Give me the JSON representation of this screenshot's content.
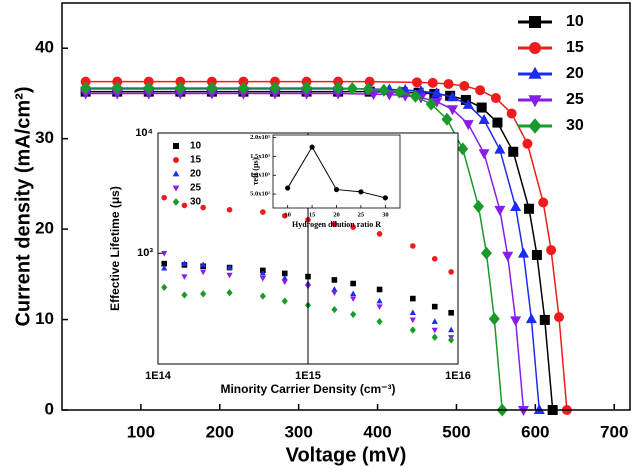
{
  "chart_data": [
    {
      "type": "line",
      "x_label": "Voltage (mV)",
      "y_label": "Current density (mA/cm²)",
      "xlim": [
        0,
        720
      ],
      "ylim": [
        0,
        45
      ],
      "xticks": [
        100,
        200,
        300,
        400,
        500,
        600,
        700
      ],
      "yticks": [
        0,
        10,
        20,
        30,
        40
      ],
      "series": [
        {
          "name": "10",
          "color": "#000000",
          "marker": "square",
          "x": [
            30,
            70,
            110,
            150,
            190,
            230,
            270,
            310,
            350,
            390,
            432,
            452,
            472,
            492,
            512,
            532,
            552,
            572,
            592,
            602,
            612,
            622
          ],
          "values": [
            35.2,
            35.2,
            35.2,
            35.2,
            35.2,
            35.2,
            35.2,
            35.2,
            35.2,
            35.2,
            35.13,
            35.08,
            34.95,
            34.74,
            34.28,
            33.44,
            31.78,
            28.55,
            22.25,
            17.14,
            9.96,
            0
          ]
        },
        {
          "name": "15",
          "color": "#ee1c1c",
          "marker": "circle",
          "x": [
            30,
            70,
            110,
            150,
            190,
            230,
            270,
            310,
            350,
            390,
            450,
            470,
            490,
            510,
            530,
            550,
            570,
            590,
            610,
            620,
            630,
            640
          ],
          "values": [
            36.3,
            36.3,
            36.3,
            36.3,
            36.3,
            36.3,
            36.3,
            36.3,
            36.3,
            36.3,
            36.23,
            36.17,
            36.05,
            35.83,
            35.36,
            34.49,
            32.78,
            29.44,
            22.94,
            17.68,
            10.27,
            0
          ]
        },
        {
          "name": "20",
          "color": "#1c2cf0",
          "marker": "triangle-up",
          "x": [
            30,
            70,
            110,
            150,
            190,
            230,
            270,
            310,
            350,
            390,
            415,
            435,
            455,
            475,
            495,
            515,
            535,
            555,
            575,
            585,
            595,
            605
          ],
          "values": [
            35.5,
            35.5,
            35.5,
            35.5,
            35.5,
            35.5,
            35.5,
            35.5,
            35.5,
            35.5,
            35.43,
            35.38,
            35.25,
            35.04,
            34.58,
            33.73,
            32.06,
            28.79,
            22.44,
            17.29,
            10.05,
            0
          ]
        },
        {
          "name": "25",
          "color": "#8a1ce8",
          "marker": "triangle-down",
          "x": [
            30,
            70,
            110,
            150,
            190,
            230,
            270,
            310,
            350,
            395,
            415,
            435,
            455,
            475,
            495,
            515,
            535,
            555,
            565,
            575,
            585
          ],
          "values": [
            35.0,
            35.0,
            35.0,
            35.0,
            35.0,
            35.0,
            35.0,
            35.0,
            35.0,
            34.93,
            34.88,
            34.76,
            34.55,
            34.09,
            33.25,
            31.61,
            28.39,
            22.12,
            17.05,
            9.91,
            0
          ]
        },
        {
          "name": "30",
          "color": "#1a9a2a",
          "marker": "diamond",
          "x": [
            30,
            70,
            110,
            150,
            190,
            230,
            270,
            310,
            350,
            368,
            388,
            408,
            428,
            448,
            468,
            488,
            508,
            528,
            538,
            548,
            558
          ],
          "values": [
            35.6,
            35.6,
            35.6,
            35.6,
            35.6,
            35.6,
            35.6,
            35.6,
            35.6,
            35.53,
            35.48,
            35.35,
            35.14,
            34.67,
            33.82,
            32.15,
            28.87,
            22.5,
            17.34,
            10.07,
            0
          ]
        }
      ]
    },
    {
      "type": "scatter",
      "x_label": "Minority Carrier Density (cm⁻³)",
      "y_label": "Effective Lifetime (μs)",
      "x_scale": "log",
      "y_scale": "log",
      "xlim": [
        100000000000000.0,
        1e+16
      ],
      "ylim": [
        120,
        10000
      ],
      "xticks": [
        {
          "value": 100000000000000.0,
          "label": "1E14"
        },
        {
          "value": 1000000000000000.0,
          "label": "1E15"
        },
        {
          "value": 1e+16,
          "label": "1E16"
        }
      ],
      "yticks": [
        {
          "value": 1000,
          "label": "10³"
        },
        {
          "value": 10000,
          "label": "10⁴"
        }
      ],
      "x": [
        110000000000000.0,
        150000000000000.0,
        200000000000000.0,
        300000000000000.0,
        500000000000000.0,
        700000000000000.0,
        1000000000000000.0,
        1500000000000000.0,
        2000000000000000.0,
        3000000000000000.0,
        5000000000000000.0,
        7000000000000000.0,
        9000000000000000.0
      ],
      "series": [
        {
          "name": "10",
          "color": "#000000",
          "marker": "square",
          "values": [
            820,
            800,
            780,
            760,
            720,
            680,
            640,
            600,
            560,
            500,
            420,
            360,
            320
          ]
        },
        {
          "name": "15",
          "color": "#ee1c1c",
          "marker": "circle",
          "values": [
            2900,
            2500,
            2400,
            2300,
            2200,
            2050,
            1900,
            1750,
            1650,
            1450,
            1150,
            900,
            700
          ]
        },
        {
          "name": "20",
          "color": "#1c2cf0",
          "marker": "triangle-up",
          "values": [
            750,
            820,
            800,
            760,
            680,
            620,
            560,
            500,
            460,
            400,
            320,
            270,
            230
          ]
        },
        {
          "name": "25",
          "color": "#8a1ce8",
          "marker": "triangle-down",
          "values": [
            1000,
            640,
            700,
            660,
            620,
            580,
            530,
            470,
            420,
            360,
            280,
            230,
            200
          ]
        },
        {
          "name": "30",
          "color": "#1a9a2a",
          "marker": "diamond",
          "values": [
            520,
            450,
            460,
            470,
            440,
            400,
            370,
            340,
            310,
            270,
            230,
            200,
            190
          ]
        }
      ]
    },
    {
      "type": "line",
      "x_label": "Hydrogen dilution ratio R",
      "y_label": "τeff (μs)",
      "xlim": [
        7,
        33
      ],
      "ylim": [
        130,
        2070
      ],
      "xticks": [
        10,
        15,
        20,
        25,
        30
      ],
      "yticks": [
        {
          "value": 500,
          "label": "5.0x10²"
        },
        {
          "value": 1000,
          "label": "1.0x10³"
        },
        {
          "value": 1500,
          "label": "1.5x10³"
        },
        {
          "value": 2000,
          "label": "2.0x10³"
        }
      ],
      "series": [
        {
          "color": "#000000",
          "marker": "circle",
          "x": [
            10,
            15,
            20,
            25,
            30
          ],
          "values": [
            660,
            1750,
            620,
            560,
            400
          ]
        }
      ]
    }
  ]
}
